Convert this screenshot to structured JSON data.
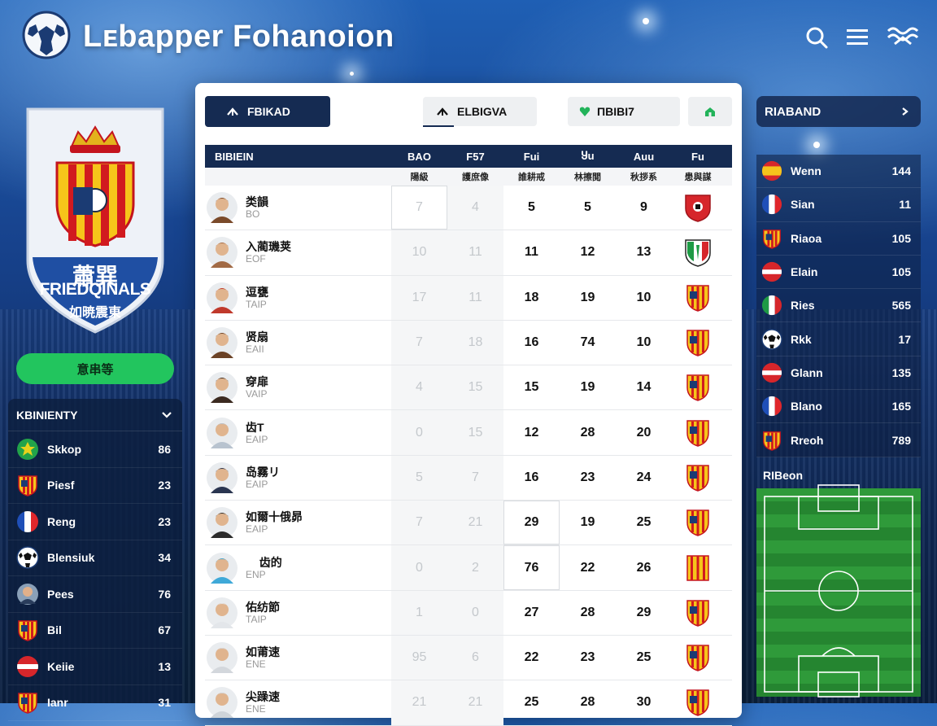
{
  "header": {
    "title": "Lᴇbapper Fohanoion",
    "icons": [
      "search-icon",
      "menu-icon",
      "wave-menu-icon"
    ]
  },
  "crest": {
    "line1": "蕭巽",
    "line2": "FRIEDQINALS",
    "line3": "如暁震東"
  },
  "cta": {
    "label": "意串等"
  },
  "left_panel": {
    "title": "KBINIENTY",
    "items": [
      {
        "name": "Skkop",
        "value": "86",
        "icon": "green-badge-icon"
      },
      {
        "name": "Piesf",
        "value": "23",
        "icon": "striped-shield-icon"
      },
      {
        "name": "Reng",
        "value": "23",
        "icon": "france-flag-icon"
      },
      {
        "name": "Blensiuk",
        "value": "34",
        "icon": "soccer-ball-icon"
      },
      {
        "name": "Pees",
        "value": "76",
        "icon": "player-avatar-icon"
      },
      {
        "name": "Bil",
        "value": "67",
        "icon": "striped-shield-icon"
      },
      {
        "name": "Keiie",
        "value": "13",
        "icon": "red-white-flag-icon"
      },
      {
        "name": "Ianr",
        "value": "31",
        "icon": "striped-shield-icon"
      }
    ]
  },
  "tabs": {
    "primary": "FBIKAD",
    "middle": "ELBIGVA",
    "right": "ΠBIBI7"
  },
  "table": {
    "columns": [
      "BIBIEIN",
      "BAO",
      "F57",
      "Fui",
      "Ⴘu",
      "Auu",
      "Fu"
    ],
    "subcolumns": [
      "",
      "陽級",
      "護庶像",
      "誰耕戒",
      "林擦閲",
      "秋拶系",
      "患與謀"
    ],
    "rows": [
      {
        "name": "类韻",
        "pos": "BO",
        "c1": "7",
        "c2": "4",
        "c3": "5",
        "c4": "5",
        "c5": "9",
        "crest": "red-shield",
        "avatar": "a1"
      },
      {
        "name": "入蔺璣荚",
        "pos": "EOF",
        "c1": "10",
        "c2": "11",
        "c3": "11",
        "c4": "12",
        "c5": "13",
        "crest": "italy-shield",
        "avatar": "a2"
      },
      {
        "name": "逗甕",
        "pos": "TAIP",
        "c1": "17",
        "c2": "11",
        "c3": "18",
        "c4": "19",
        "c5": "10",
        "crest": "striped-shield",
        "avatar": "a3"
      },
      {
        "name": "贤扇",
        "pos": "EAII",
        "c1": "7",
        "c2": "18",
        "c3": "16",
        "c4": "74",
        "c5": "10",
        "crest": "striped-shield",
        "avatar": "a4"
      },
      {
        "name": "穿扉",
        "pos": "VAIP",
        "c1": "4",
        "c2": "15",
        "c3": "15",
        "c4": "19",
        "c5": "14",
        "crest": "striped-shield",
        "avatar": "a5"
      },
      {
        "name": "齿T",
        "pos": "EAIP",
        "c1": "0",
        "c2": "15",
        "c3": "12",
        "c4": "28",
        "c5": "20",
        "crest": "striped-shield",
        "avatar": "a6"
      },
      {
        "name": "岛霧リ",
        "pos": "EAIP",
        "c1": "5",
        "c2": "7",
        "c3": "16",
        "c4": "23",
        "c5": "24",
        "crest": "striped-shield",
        "avatar": "a7"
      },
      {
        "name": "如爾十俄昴",
        "pos": "EAIP",
        "c1": "7",
        "c2": "21",
        "c3": "29",
        "c4": "19",
        "c5": "25",
        "crest": "striped-shield",
        "avatar": "a8"
      },
      {
        "name": "ᅟ 齿的",
        "pos": "ENP",
        "c1": "0",
        "c2": "2",
        "c3": "76",
        "c4": "22",
        "c5": "26",
        "crest": "striped-flag",
        "avatar": "a9"
      },
      {
        "name": "佑纺節",
        "pos": "TAIP",
        "c1": "1",
        "c2": "0",
        "c3": "27",
        "c4": "28",
        "c5": "29",
        "crest": "striped-shield",
        "avatar": "a10"
      },
      {
        "name": "如莆速",
        "pos": "ENE",
        "c1": "95",
        "c2": "6",
        "c3": "22",
        "c4": "23",
        "c5": "25",
        "crest": "striped-shield",
        "avatar": "a11"
      },
      {
        "name": "尖躁速",
        "pos": "ENE",
        "c1": "21",
        "c2": "21",
        "c3": "25",
        "c4": "28",
        "c5": "30",
        "crest": "striped-shield",
        "avatar": "a12"
      }
    ]
  },
  "right_panel": {
    "title": "RIABAND",
    "items": [
      {
        "name": "Wenn",
        "value": "144",
        "icon": "spain-flag-icon"
      },
      {
        "name": "Sian",
        "value": "11",
        "icon": "france-flag-icon"
      },
      {
        "name": "Riaoa",
        "value": "105",
        "icon": "striped-shield-icon"
      },
      {
        "name": "Elain",
        "value": "105",
        "icon": "red-white-flag-icon"
      },
      {
        "name": "Ries",
        "value": "565",
        "icon": "italy-flag-icon"
      },
      {
        "name": "Rkk",
        "value": "17",
        "icon": "soccer-ball-icon"
      },
      {
        "name": "Glann",
        "value": "135",
        "icon": "red-white-flag-icon"
      },
      {
        "name": "Blano",
        "value": "165",
        "icon": "france-flag-icon"
      },
      {
        "name": "Rreoh",
        "value": "789",
        "icon": "striped-shield-icon"
      }
    ],
    "pitch_label": "RIBeon"
  }
}
